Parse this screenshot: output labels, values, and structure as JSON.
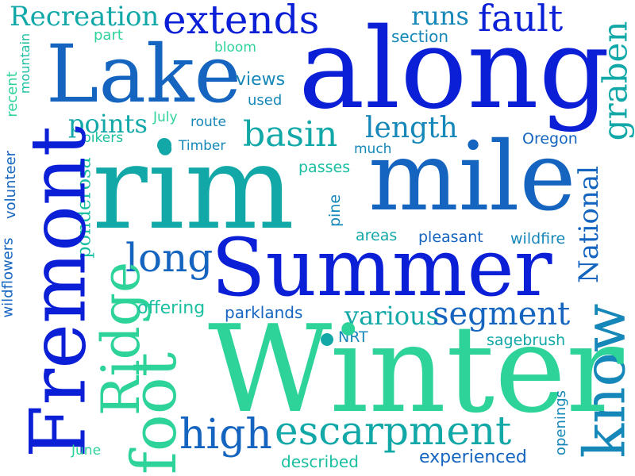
{
  "colors": {
    "deep_blue": "#0a1fd6",
    "blue": "#1a4fd6",
    "mid_blue": "#1565c0",
    "teal_blue": "#1587b8",
    "teal": "#12a8a8",
    "green_teal": "#19bfa0",
    "green": "#2ed39a"
  },
  "words": [
    "Recreation",
    "part",
    "recent",
    "mountain",
    "bloom",
    "extends",
    "runs",
    "fault",
    "section",
    "graben",
    "Lake",
    "along",
    "views",
    "used",
    "points",
    "July",
    "route",
    "bikers",
    "basin",
    "length",
    "much",
    "Timber",
    "Oregon",
    "rim",
    "mile",
    "passes",
    "National",
    "pine",
    "ponderosa",
    "wildflowers",
    "volunteer",
    "areas",
    "pleasant",
    "wildfire",
    "long",
    "Summer",
    "Ridge",
    "offering",
    "parklands",
    "various",
    "segment",
    "Fremont",
    "know",
    "NRT",
    "sagebrush",
    "Winter",
    "foot",
    "high",
    "escarpment",
    "openings",
    "June",
    "described",
    "experienced"
  ]
}
